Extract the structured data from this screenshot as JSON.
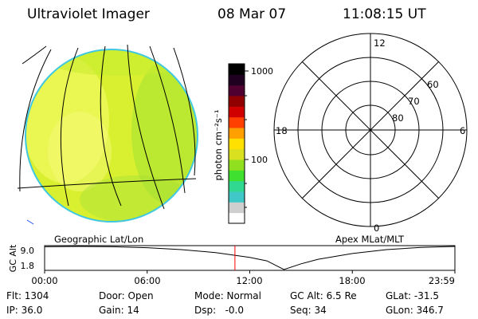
{
  "header": {
    "instrument": "Ultraviolet Imager",
    "date": "08 Mar 07",
    "time": "11:08:15 UT"
  },
  "colorbar": {
    "unit_label": "photon cm⁻²s⁻¹",
    "ticks": [
      "1000",
      "100"
    ],
    "colors": [
      "#ffffff",
      "#cfcfcf",
      "#40c8c8",
      "#30d890",
      "#40e030",
      "#90e020",
      "#d8e020",
      "#ffe000",
      "#ffa000",
      "#ff4000",
      "#d00000",
      "#900000",
      "#500030",
      "#200020",
      "#000000"
    ]
  },
  "polar_plot": {
    "mlt_labels": {
      "top": "12",
      "bottom": "0",
      "left": "18",
      "right": "6"
    },
    "lat_labels": [
      "60",
      "70",
      "80"
    ],
    "caption": "Apex MLat/MLT"
  },
  "geo_plot": {
    "caption": "Geographic Lat/Lon",
    "disk_color": "#d8f030",
    "edge_color": "#40c8e0"
  },
  "altitude_plot": {
    "ylabel": "GC Alt",
    "yticks": [
      "9.0",
      "1.8"
    ],
    "xticks": [
      "00:00",
      "06:00",
      "12:00",
      "18:00",
      "23:59"
    ],
    "marker_time": "11:08",
    "marker_color": "#ff0000"
  },
  "chart_data": {
    "type": "line",
    "title": "",
    "xlabel": "",
    "ylabel": "GC Alt",
    "x": [
      0,
      2,
      4,
      6,
      8,
      10,
      12,
      13,
      14,
      15,
      16,
      18,
      20,
      22,
      24
    ],
    "series": [
      {
        "values": [
          8.9,
          9.0,
          8.9,
          8.6,
          8.0,
          7.1,
          5.6,
          4.5,
          1.8,
          3.6,
          5.0,
          6.8,
          8.0,
          8.7,
          9.0
        ]
      }
    ],
    "xlim": [
      0,
      24
    ],
    "ylim": [
      1.8,
      9.0
    ]
  },
  "status": {
    "flt": "Flt: 1304",
    "ip": "IP: 36.0",
    "door": "Door: Open",
    "gain": "Gain: 14",
    "mode": "Mode: Normal",
    "dsp": "Dsp:   -0.0",
    "gcalt": "GC Alt: 6.5 Re",
    "seq": "Seq: 34",
    "glat": "GLat: -31.5",
    "glon": "GLon: 346.7"
  }
}
